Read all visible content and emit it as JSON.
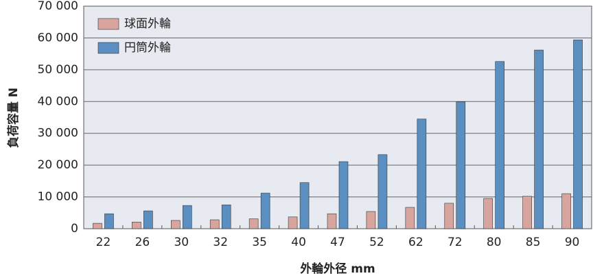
{
  "chart_data": {
    "type": "bar",
    "categories": [
      "22",
      "26",
      "30",
      "32",
      "35",
      "40",
      "47",
      "52",
      "62",
      "72",
      "80",
      "85",
      "90"
    ],
    "series": [
      {
        "name": "球面外輪",
        "color": "#d8a59e",
        "values": [
          1700,
          2100,
          2600,
          2800,
          3100,
          3700,
          4700,
          5400,
          6700,
          8000,
          9500,
          10200,
          11000
        ]
      },
      {
        "name": "円筒外輪",
        "color": "#5b8fc1",
        "values": [
          4700,
          5600,
          7300,
          7500,
          11200,
          14500,
          21100,
          23300,
          34500,
          39900,
          52600,
          56200,
          59400
        ]
      }
    ],
    "ylim": [
      0,
      70000
    ],
    "yticks": [
      0,
      {
        "value": 10000,
        "label": "10 000"
      },
      {
        "value": 20000,
        "label": "20 000"
      },
      {
        "value": 30000,
        "label": "30 000"
      },
      {
        "value": 40000,
        "label": "40 000"
      },
      {
        "value": 50000,
        "label": "50 000"
      },
      {
        "value": 60000,
        "label": "60 000"
      },
      {
        "value": 70000,
        "label": "70 000"
      }
    ],
    "ylabel": "負荷容量 N",
    "xlabel": "外輪外径 mm",
    "grid": true,
    "legend": "upper left"
  }
}
